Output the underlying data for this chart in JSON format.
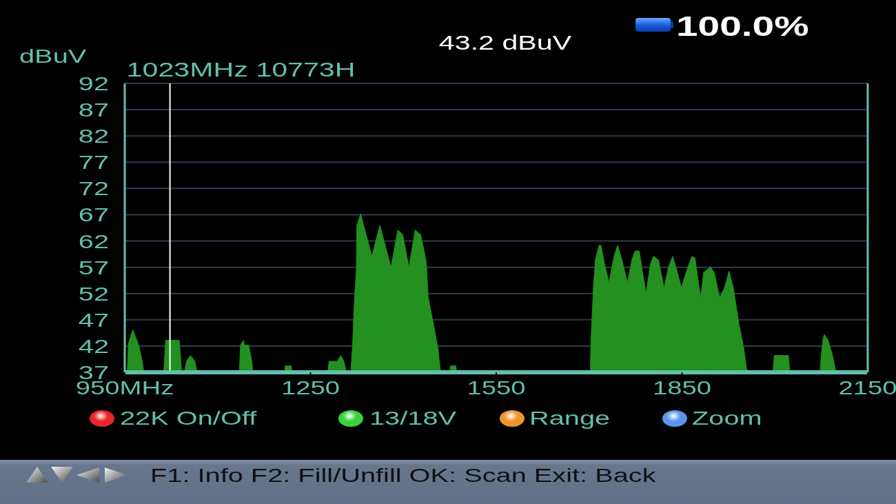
{
  "chart_data": {
    "type": "area",
    "ylabel": "dBuV",
    "annotations": [
      "43.2 dBuV",
      "100.0%",
      "22K On/Off",
      "13/18V",
      "Range",
      "Zoom",
      "F1: Info F2: Fill/Unfill OK: Scan Exit: Back"
    ],
    "x": [
      950,
      954,
      956,
      963,
      973,
      978,
      981,
      1013,
      1016,
      1038,
      1042,
      1046,
      1050,
      1056,
      1063,
      1067,
      1135,
      1137,
      1142,
      1143,
      1150,
      1155,
      1157,
      1208,
      1209,
      1219,
      1220,
      1278,
      1280,
      1293,
      1299,
      1304,
      1308,
      1315,
      1318,
      1321,
      1324,
      1325,
      1331,
      1349,
      1362,
      1380,
      1391,
      1399,
      1409,
      1419,
      1428,
      1437,
      1440,
      1450,
      1456,
      1460,
      1475,
      1476,
      1485,
      1486,
      1702,
      1703,
      1705,
      1707,
      1710,
      1716,
      1719,
      1725,
      1732,
      1740,
      1746,
      1753,
      1762,
      1769,
      1774,
      1781,
      1786,
      1792,
      1799,
      1804,
      1812,
      1821,
      1828,
      1835,
      1841,
      1849,
      1858,
      1866,
      1871,
      1880,
      1885,
      1896,
      1902,
      1911,
      1919,
      1926,
      1933,
      1942,
      1950,
      1955,
      1997,
      1999,
      2022,
      2024,
      2073,
      2075,
      2078,
      2080,
      2086,
      2092,
      2099,
      2150
    ],
    "values": [
      37,
      37,
      42.5,
      45.1,
      42,
      39.2,
      37,
      37,
      43.1,
      43.1,
      37,
      37,
      39.2,
      40.2,
      39.2,
      37,
      37,
      42.2,
      43.1,
      42.2,
      42.2,
      39.2,
      37,
      37,
      38.2,
      38.2,
      37,
      37,
      39.1,
      39.1,
      40.2,
      39.1,
      37,
      37,
      42.3,
      51,
      56.3,
      65,
      67.2,
      59.1,
      65,
      57,
      64.1,
      63.2,
      57,
      64.1,
      63.2,
      58,
      51.4,
      45.3,
      41.4,
      37,
      37,
      38.2,
      38.2,
      37,
      37,
      43.2,
      48.2,
      53.2,
      58.4,
      61.2,
      61.2,
      57.6,
      54.1,
      58.9,
      61.2,
      58.4,
      54.1,
      58.4,
      60.1,
      60.1,
      56.3,
      52.1,
      57.6,
      59.1,
      58.4,
      53.1,
      57,
      59.1,
      56.7,
      53.1,
      56.5,
      59.1,
      58.8,
      51.2,
      56,
      57.1,
      56,
      51.2,
      53.2,
      56.3,
      53,
      46.2,
      41.4,
      37,
      37,
      40.2,
      40.2,
      37,
      37,
      40.3,
      43.5,
      44.2,
      43.1,
      40.7,
      37,
      37
    ],
    "color": "#23901f",
    "xlim": [
      950,
      2150
    ],
    "xticks": [
      {
        "value": 950,
        "label": "950MHz"
      },
      1250,
      1550,
      1850,
      2150
    ],
    "ylim": [
      37,
      92
    ],
    "yticks": [
      37,
      42,
      47,
      52,
      57,
      62,
      67,
      72,
      77,
      82,
      87,
      92
    ],
    "grid": "y",
    "ref_lines": [
      {
        "axis": "x",
        "value": 1023,
        "label": "1023MHz 10773H",
        "color": "#ffffff"
      }
    ]
  }
}
